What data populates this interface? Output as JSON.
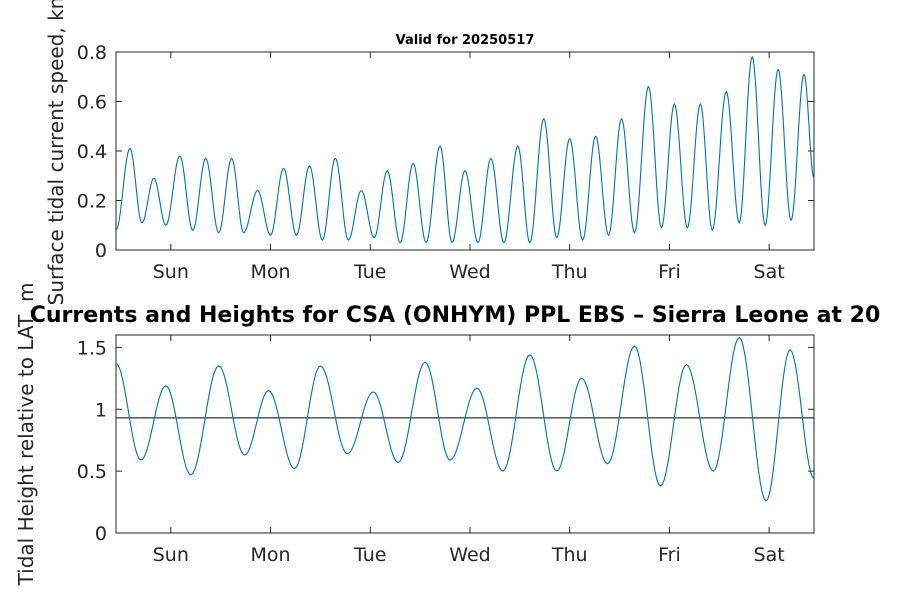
{
  "chart_data": [
    {
      "type": "line",
      "title": "Valid for 20250517",
      "ylabel": "Surface tidal current speed, kn",
      "ylim": [
        0,
        0.8
      ],
      "yticks": [
        0,
        0.2,
        0.4,
        0.6,
        0.8
      ],
      "ytick_labels": [
        "0",
        "0.2",
        "0.4",
        "0.6",
        "0.8"
      ],
      "xlim_days": [
        0,
        7
      ],
      "xtick_labels": [
        "Sun",
        "Mon",
        "Tue",
        "Wed",
        "Thu",
        "Fri",
        "Sat"
      ],
      "xtick_days": [
        0.55,
        1.55,
        2.55,
        3.55,
        4.55,
        5.55,
        6.55
      ],
      "series": [
        {
          "color": "#0072bd",
          "note_unit": "kn",
          "peaks": [
            [
              0.0,
              0.08
            ],
            [
              0.14,
              0.41
            ],
            [
              0.26,
              0.11
            ],
            [
              0.38,
              0.29
            ],
            [
              0.5,
              0.1
            ],
            [
              0.64,
              0.38
            ],
            [
              0.77,
              0.08
            ],
            [
              0.9,
              0.37
            ],
            [
              1.03,
              0.07
            ],
            [
              1.16,
              0.37
            ],
            [
              1.28,
              0.07
            ],
            [
              1.42,
              0.24
            ],
            [
              1.55,
              0.06
            ],
            [
              1.68,
              0.33
            ],
            [
              1.81,
              0.06
            ],
            [
              1.94,
              0.34
            ],
            [
              2.07,
              0.04
            ],
            [
              2.2,
              0.37
            ],
            [
              2.33,
              0.04
            ],
            [
              2.46,
              0.24
            ],
            [
              2.59,
              0.05
            ],
            [
              2.72,
              0.32
            ],
            [
              2.85,
              0.03
            ],
            [
              2.98,
              0.35
            ],
            [
              3.11,
              0.03
            ],
            [
              3.25,
              0.42
            ],
            [
              3.37,
              0.03
            ],
            [
              3.5,
              0.32
            ],
            [
              3.63,
              0.03
            ],
            [
              3.76,
              0.37
            ],
            [
              3.89,
              0.03
            ],
            [
              4.03,
              0.42
            ],
            [
              4.15,
              0.03
            ],
            [
              4.29,
              0.53
            ],
            [
              4.42,
              0.05
            ],
            [
              4.55,
              0.45
            ],
            [
              4.68,
              0.04
            ],
            [
              4.81,
              0.46
            ],
            [
              4.94,
              0.06
            ],
            [
              5.07,
              0.53
            ],
            [
              5.2,
              0.07
            ],
            [
              5.34,
              0.66
            ],
            [
              5.47,
              0.09
            ],
            [
              5.6,
              0.59
            ],
            [
              5.73,
              0.09
            ],
            [
              5.86,
              0.59
            ],
            [
              5.98,
              0.08
            ],
            [
              6.12,
              0.64
            ],
            [
              6.25,
              0.11
            ],
            [
              6.38,
              0.78
            ],
            [
              6.51,
              0.1
            ],
            [
              6.64,
              0.73
            ],
            [
              6.77,
              0.12
            ],
            [
              6.9,
              0.71
            ],
            [
              7.0,
              0.29
            ]
          ]
        }
      ]
    },
    {
      "type": "line",
      "title": "Currents and Heights for CSA (ONHYM) PPL EBS  – Sierra Leone at 20",
      "ylabel": "Tidal Height relative to LAT, m",
      "ylim": [
        0,
        1.6
      ],
      "yticks": [
        0,
        0.5,
        1,
        1.5
      ],
      "ytick_labels": [
        "0",
        "0.5",
        "1",
        "1.5"
      ],
      "xlim_days": [
        0,
        7
      ],
      "xtick_labels": [
        "Sun",
        "Mon",
        "Tue",
        "Wed",
        "Thu",
        "Fri",
        "Sat"
      ],
      "xtick_days": [
        0.55,
        1.55,
        2.55,
        3.55,
        4.55,
        5.55,
        6.55
      ],
      "reference_line": 0.93,
      "series": [
        {
          "color": "#0072bd",
          "note_unit": "m",
          "peaks": [
            [
              0.0,
              1.37
            ],
            [
              0.25,
              0.59
            ],
            [
              0.5,
              1.19
            ],
            [
              0.75,
              0.47
            ],
            [
              1.03,
              1.35
            ],
            [
              1.29,
              0.63
            ],
            [
              1.53,
              1.15
            ],
            [
              1.79,
              0.52
            ],
            [
              2.05,
              1.35
            ],
            [
              2.32,
              0.64
            ],
            [
              2.58,
              1.14
            ],
            [
              2.83,
              0.57
            ],
            [
              3.1,
              1.38
            ],
            [
              3.35,
              0.59
            ],
            [
              3.62,
              1.17
            ],
            [
              3.88,
              0.5
            ],
            [
              4.15,
              1.44
            ],
            [
              4.42,
              0.5
            ],
            [
              4.67,
              1.25
            ],
            [
              4.93,
              0.56
            ],
            [
              5.2,
              1.51
            ],
            [
              5.46,
              0.38
            ],
            [
              5.72,
              1.36
            ],
            [
              5.99,
              0.5
            ],
            [
              6.25,
              1.58
            ],
            [
              6.52,
              0.26
            ],
            [
              6.76,
              1.48
            ],
            [
              7.0,
              0.44
            ]
          ]
        }
      ]
    }
  ]
}
